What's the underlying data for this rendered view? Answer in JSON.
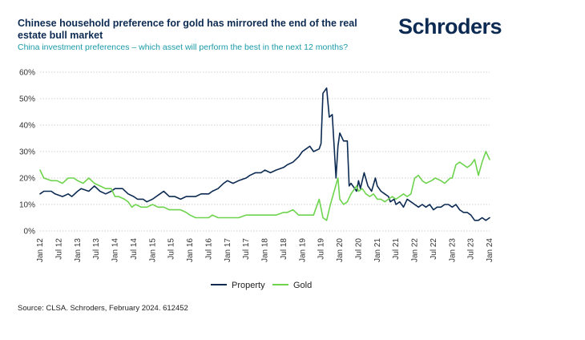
{
  "header": {
    "title": "Chinese household preference for gold has mirrored the end of the real estate bull market",
    "subtitle": "China investment preferences – which asset will perform the best in the next 12 months?",
    "logo_text": "Schroders"
  },
  "footer": {
    "source": "Source: CLSA. Schroders, February 2024. 612452"
  },
  "colors": {
    "property": "#0d2b52",
    "gold": "#6ed34d",
    "brand": "#0d2b52",
    "subtitle": "#1a9aa8"
  },
  "chart_data": {
    "type": "line",
    "title": "China investment preferences – which asset will perform the best in the next 12 months?",
    "xlabel": "",
    "ylabel": "",
    "ylim": [
      0,
      60
    ],
    "y_ticks": [
      "0%",
      "10%",
      "20%",
      "30%",
      "40%",
      "50%",
      "60%"
    ],
    "x_range": [
      2012.0,
      2024.0
    ],
    "x_tick_labels": [
      "Jan 12",
      "Jul 12",
      "Jan 13",
      "Jul 13",
      "Jan 14",
      "Jul 14",
      "Jan 15",
      "Jul 15",
      "Jan 16",
      "Jul 16",
      "Jan 17",
      "Jul 17",
      "Jan 18",
      "Jul 18",
      "Jan 19",
      "Jul 19",
      "Jan 20",
      "Jul 20",
      "Jan 21",
      "Jul 21",
      "Jan 22",
      "Jul 22",
      "Jan 23",
      "Jul 23",
      "Jan 24"
    ],
    "legend_position": "bottom-center",
    "series": [
      {
        "name": "Property",
        "x": [
          2012.0,
          2012.1,
          2012.3,
          2012.4,
          2012.6,
          2012.75,
          2012.85,
          2013.0,
          2013.1,
          2013.3,
          2013.45,
          2013.6,
          2013.75,
          2013.9,
          2014.0,
          2014.2,
          2014.35,
          2014.5,
          2014.6,
          2014.75,
          2014.85,
          2015.0,
          2015.2,
          2015.3,
          2015.45,
          2015.6,
          2015.75,
          2015.9,
          2016.0,
          2016.15,
          2016.3,
          2016.5,
          2016.6,
          2016.75,
          2016.9,
          2017.0,
          2017.15,
          2017.3,
          2017.5,
          2017.6,
          2017.75,
          2017.9,
          2018.0,
          2018.15,
          2018.3,
          2018.5,
          2018.6,
          2018.75,
          2018.9,
          2019.0,
          2019.1,
          2019.2,
          2019.3,
          2019.45,
          2019.5,
          2019.55,
          2019.6,
          2019.65,
          2019.72,
          2019.8,
          2019.9,
          2019.95,
          2020.0,
          2020.1,
          2020.2,
          2020.25,
          2020.3,
          2020.4,
          2020.45,
          2020.5,
          2020.55,
          2020.65,
          2020.75,
          2020.85,
          2020.95,
          2021.0,
          2021.1,
          2021.2,
          2021.3,
          2021.35,
          2021.45,
          2021.5,
          2021.6,
          2021.7,
          2021.8,
          2021.9,
          2022.0,
          2022.1,
          2022.2,
          2022.3,
          2022.4,
          2022.5,
          2022.6,
          2022.7,
          2022.8,
          2022.9,
          2023.0,
          2023.1,
          2023.2,
          2023.3,
          2023.4,
          2023.5,
          2023.6,
          2023.7,
          2023.8,
          2023.9,
          2024.0
        ],
        "values": [
          14,
          15,
          15,
          14,
          13,
          14,
          13,
          15,
          16,
          15,
          17,
          15,
          14,
          15,
          16,
          16,
          14,
          13,
          12,
          12,
          11,
          12,
          14,
          15,
          13,
          13,
          12,
          13,
          13,
          13,
          14,
          14,
          15,
          16,
          18,
          19,
          18,
          19,
          20,
          21,
          22,
          22,
          23,
          22,
          23,
          24,
          25,
          26,
          28,
          30,
          31,
          32,
          30,
          31,
          33,
          52,
          53,
          54,
          43,
          44,
          20,
          32,
          37,
          34,
          34,
          17,
          18,
          16,
          15,
          19,
          16,
          22,
          17,
          15,
          20,
          17,
          15,
          14,
          13,
          11,
          12,
          10,
          11,
          9,
          12,
          11,
          10,
          9,
          10,
          9,
          10,
          8,
          9,
          9,
          10,
          10,
          9,
          10,
          8,
          7,
          7,
          6,
          4,
          4,
          5,
          4,
          5
        ]
      },
      {
        "name": "Gold",
        "x": [
          2012.0,
          2012.1,
          2012.3,
          2012.45,
          2012.6,
          2012.75,
          2012.9,
          2013.0,
          2013.15,
          2013.3,
          2013.45,
          2013.6,
          2013.75,
          2013.9,
          2014.0,
          2014.1,
          2014.25,
          2014.35,
          2014.45,
          2014.55,
          2014.7,
          2014.85,
          2015.0,
          2015.15,
          2015.3,
          2015.45,
          2015.6,
          2015.75,
          2015.9,
          2016.0,
          2016.15,
          2016.3,
          2016.5,
          2016.6,
          2016.75,
          2016.9,
          2017.0,
          2017.15,
          2017.3,
          2017.5,
          2017.6,
          2017.75,
          2017.9,
          2018.0,
          2018.15,
          2018.3,
          2018.5,
          2018.6,
          2018.75,
          2018.9,
          2019.0,
          2019.15,
          2019.3,
          2019.45,
          2019.55,
          2019.65,
          2019.75,
          2019.85,
          2019.95,
          2020.0,
          2020.1,
          2020.2,
          2020.3,
          2020.45,
          2020.5,
          2020.6,
          2020.7,
          2020.8,
          2020.9,
          2021.0,
          2021.1,
          2021.2,
          2021.3,
          2021.4,
          2021.5,
          2021.6,
          2021.7,
          2021.8,
          2021.9,
          2022.0,
          2022.1,
          2022.2,
          2022.3,
          2022.45,
          2022.55,
          2022.7,
          2022.8,
          2022.95,
          2023.0,
          2023.1,
          2023.2,
          2023.3,
          2023.4,
          2023.5,
          2023.6,
          2023.7,
          2023.8,
          2023.9,
          2024.0
        ],
        "values": [
          23,
          20,
          19,
          19,
          18,
          20,
          20,
          19,
          18,
          20,
          18,
          17,
          16,
          16,
          13,
          13,
          12,
          11,
          9,
          10,
          9,
          9,
          10,
          9,
          9,
          8,
          8,
          8,
          7,
          6,
          5,
          5,
          5,
          6,
          5,
          5,
          5,
          5,
          5,
          6,
          6,
          6,
          6,
          6,
          6,
          6,
          7,
          7,
          8,
          6,
          6,
          6,
          6,
          12,
          5,
          4,
          10,
          15,
          20,
          12,
          10,
          11,
          14,
          17,
          15,
          16,
          14,
          13,
          14,
          12,
          12,
          11,
          12,
          13,
          12,
          13,
          14,
          13,
          14,
          20,
          21,
          19,
          18,
          19,
          20,
          19,
          18,
          20,
          20,
          25,
          26,
          25,
          24,
          25,
          27,
          21,
          26,
          30,
          27
        ]
      }
    ]
  }
}
